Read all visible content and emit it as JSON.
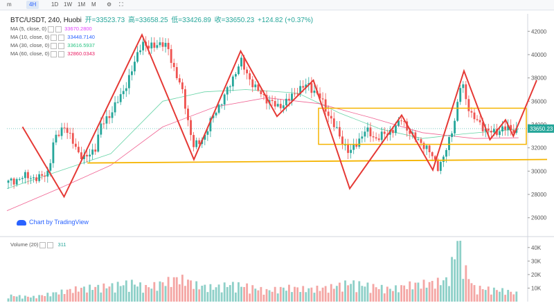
{
  "toolbar": {
    "items": [
      "m",
      "4H",
      "1D",
      "1W",
      "1M",
      "M"
    ],
    "icons": [
      "settings-icon",
      "fullscreen-icon"
    ]
  },
  "legend": {
    "symbol": "BTC/USDT, 240, Huobi",
    "open_label": "开=33523.73",
    "high_label": "高=33658.25",
    "low_label": "低=33426.89",
    "close_label": "收=33650.23",
    "change": "+124.82 (+0.37%)"
  },
  "ma": [
    {
      "label": "MA (5, close, 0)",
      "value": "33670.2800",
      "color": "#e040fb"
    },
    {
      "label": "MA (10, close, 0)",
      "value": "33448.7140",
      "color": "#2962ff"
    },
    {
      "label": "MA (30, close, 0)",
      "value": "33616.5937",
      "color": "#26c281"
    },
    {
      "label": "MA (60, close, 0)",
      "value": "32860.0343",
      "color": "#e91e63"
    }
  ],
  "watermark": "Chart by TradingView",
  "volume": {
    "label": "Volume (20)",
    "value": "311"
  },
  "price_tag": "33650.23",
  "colors": {
    "up": "#26a69a",
    "down": "#ef5350",
    "zigzag": "#e53935",
    "support": "#f5b400",
    "current": "#26a69a"
  },
  "chart_data": {
    "type": "candlestick",
    "title": "BTC/USDT, 240, Huobi",
    "y_ticks": [
      26000,
      28000,
      30000,
      32000,
      34000,
      36000,
      38000,
      40000,
      42000
    ],
    "ylim": [
      24500,
      43500
    ],
    "volume_ticks": [
      "10K",
      "20K",
      "30K",
      "40K"
    ],
    "volume_ylim": [
      0,
      45
    ],
    "current_price": 33650.23,
    "zigzag_pivots": [
      {
        "i": 0.03,
        "y": 33800
      },
      {
        "i": 0.11,
        "y": 27800
      },
      {
        "i": 0.26,
        "y": 41700
      },
      {
        "i": 0.36,
        "y": 31000
      },
      {
        "i": 0.45,
        "y": 40300
      },
      {
        "i": 0.52,
        "y": 34700
      },
      {
        "i": 0.59,
        "y": 37800
      },
      {
        "i": 0.66,
        "y": 28500
      },
      {
        "i": 0.76,
        "y": 34800
      },
      {
        "i": 0.82,
        "y": 30100
      },
      {
        "i": 0.88,
        "y": 38600
      },
      {
        "i": 0.93,
        "y": 32700
      },
      {
        "i": 0.96,
        "y": 34400
      },
      {
        "i": 0.975,
        "y": 33000
      },
      {
        "i": 1.02,
        "y": 37800
      }
    ],
    "range_box": {
      "x0": 0.6,
      "x1": 1.0,
      "y_low": 32300,
      "y_high": 35400
    },
    "support_line": {
      "x0": 0.155,
      "y0": 30700,
      "x1": 1.04,
      "y1": 31000
    },
    "price_path": [
      [
        0.0,
        29000
      ],
      [
        0.02,
        29300
      ],
      [
        0.04,
        29600
      ],
      [
        0.06,
        29300
      ],
      [
        0.08,
        30000
      ],
      [
        0.09,
        32500
      ],
      [
        0.11,
        34000
      ],
      [
        0.12,
        33000
      ],
      [
        0.14,
        31500
      ],
      [
        0.15,
        31000
      ],
      [
        0.17,
        32000
      ],
      [
        0.18,
        33800
      ],
      [
        0.2,
        35000
      ],
      [
        0.22,
        36500
      ],
      [
        0.24,
        38500
      ],
      [
        0.26,
        41200
      ],
      [
        0.27,
        40500
      ],
      [
        0.29,
        41000
      ],
      [
        0.31,
        40600
      ],
      [
        0.32,
        39000
      ],
      [
        0.34,
        36500
      ],
      [
        0.35,
        34000
      ],
      [
        0.36,
        32000
      ],
      [
        0.38,
        33000
      ],
      [
        0.4,
        35000
      ],
      [
        0.42,
        36500
      ],
      [
        0.44,
        38500
      ],
      [
        0.45,
        39500
      ],
      [
        0.46,
        38500
      ],
      [
        0.48,
        37000
      ],
      [
        0.5,
        36200
      ],
      [
        0.52,
        35500
      ],
      [
        0.54,
        36000
      ],
      [
        0.56,
        37000
      ],
      [
        0.58,
        37400
      ],
      [
        0.6,
        36500
      ],
      [
        0.62,
        34800
      ],
      [
        0.64,
        33000
      ],
      [
        0.66,
        31500
      ],
      [
        0.67,
        32200
      ],
      [
        0.69,
        33500
      ],
      [
        0.71,
        32800
      ],
      [
        0.73,
        33200
      ],
      [
        0.75,
        33800
      ],
      [
        0.76,
        34500
      ],
      [
        0.78,
        33000
      ],
      [
        0.8,
        32400
      ],
      [
        0.82,
        31200
      ],
      [
        0.83,
        30400
      ],
      [
        0.84,
        31000
      ],
      [
        0.855,
        33200
      ],
      [
        0.865,
        35000
      ],
      [
        0.875,
        37800
      ],
      [
        0.885,
        36000
      ],
      [
        0.895,
        34800
      ],
      [
        0.91,
        34000
      ],
      [
        0.925,
        33500
      ],
      [
        0.94,
        33200
      ],
      [
        0.955,
        33800
      ],
      [
        0.97,
        33500
      ],
      [
        0.985,
        33650
      ]
    ],
    "volume_path": [
      [
        0.0,
        4
      ],
      [
        0.05,
        3
      ],
      [
        0.1,
        6
      ],
      [
        0.13,
        8
      ],
      [
        0.16,
        9
      ],
      [
        0.2,
        10
      ],
      [
        0.24,
        12
      ],
      [
        0.27,
        9
      ],
      [
        0.3,
        12
      ],
      [
        0.33,
        15
      ],
      [
        0.35,
        13
      ],
      [
        0.37,
        10
      ],
      [
        0.4,
        9
      ],
      [
        0.43,
        11
      ],
      [
        0.46,
        10
      ],
      [
        0.5,
        7
      ],
      [
        0.54,
        9
      ],
      [
        0.58,
        8
      ],
      [
        0.62,
        9
      ],
      [
        0.66,
        12
      ],
      [
        0.7,
        10
      ],
      [
        0.74,
        8
      ],
      [
        0.78,
        11
      ],
      [
        0.82,
        12
      ],
      [
        0.85,
        14
      ],
      [
        0.87,
        43
      ],
      [
        0.88,
        22
      ],
      [
        0.9,
        9
      ],
      [
        0.93,
        8
      ],
      [
        0.96,
        7
      ],
      [
        0.985,
        5
      ]
    ],
    "ma_series": [
      {
        "name": "MA (30, close, 0)",
        "points": [
          [
            0.0,
            28500
          ],
          [
            0.1,
            30000
          ],
          [
            0.2,
            31500
          ],
          [
            0.3,
            36000
          ],
          [
            0.38,
            36800
          ],
          [
            0.46,
            37000
          ],
          [
            0.56,
            36700
          ],
          [
            0.64,
            35000
          ],
          [
            0.72,
            33600
          ],
          [
            0.8,
            32800
          ],
          [
            0.88,
            33200
          ],
          [
            0.985,
            33600
          ]
        ]
      },
      {
        "name": "MA (60, close, 0)",
        "points": [
          [
            0.0,
            26600
          ],
          [
            0.1,
            28500
          ],
          [
            0.2,
            30500
          ],
          [
            0.3,
            33800
          ],
          [
            0.4,
            35500
          ],
          [
            0.5,
            36300
          ],
          [
            0.6,
            35800
          ],
          [
            0.7,
            34600
          ],
          [
            0.8,
            33300
          ],
          [
            0.9,
            32800
          ],
          [
            0.985,
            32860
          ]
        ]
      }
    ]
  }
}
